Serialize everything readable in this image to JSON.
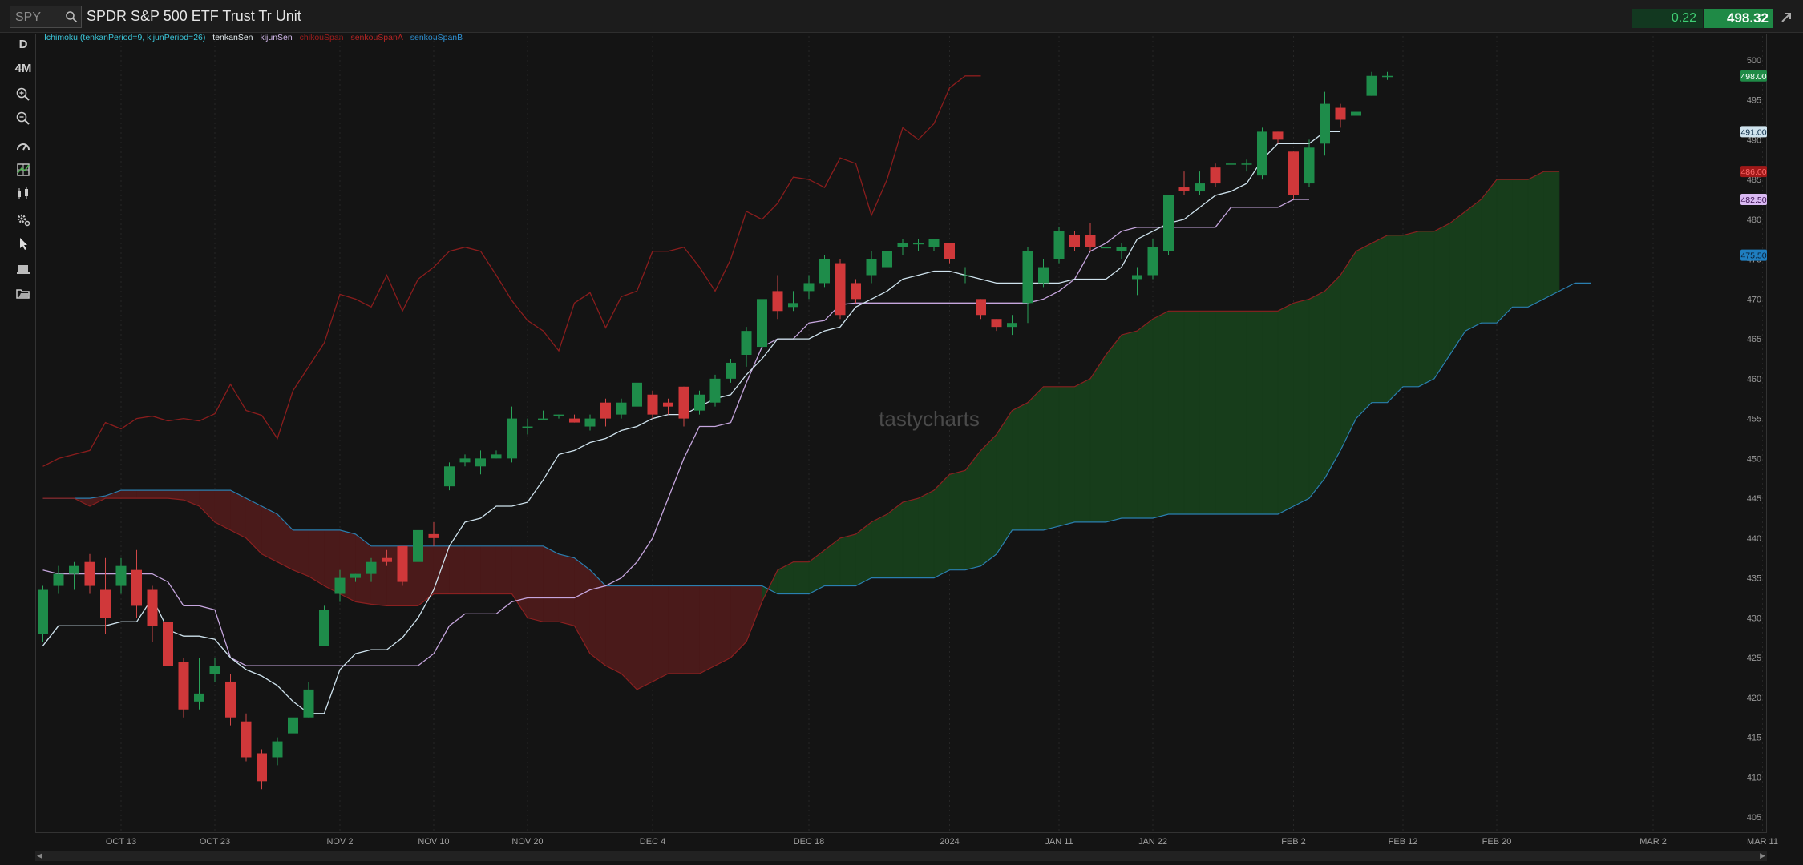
{
  "header": {
    "search_value": "SPY",
    "title": "SPDR S&P 500 ETF Trust Tr Unit",
    "net_change": "0.22",
    "last_price": "498.32"
  },
  "toolbar": {
    "period": "D",
    "range": "4M",
    "icons": [
      "zoom-in-icon",
      "zoom-out-icon",
      "drawings-icon",
      "studies-icon",
      "style-icon",
      "settings-icon",
      "cursor-icon",
      "template-icon",
      "open-folder-icon"
    ]
  },
  "legend": {
    "study": "Ichimoku (tenkanPeriod=9, kijunPeriod=26)",
    "tenkan": "tenkanSen",
    "kijun": "kijunSen",
    "chikou": "chikouSpan",
    "spanA": "senkouSpanA",
    "spanB": "senkouSpanB"
  },
  "watermark": "tastycharts",
  "colors": {
    "up": "#1e8c4a",
    "down": "#d0383a",
    "tenkan": "#cfe3ee",
    "kijun": "#c6a6de",
    "chikou": "#8a1d1d",
    "spanA": "#8a2020",
    "spanB": "#2a7fb0",
    "cloud_bull": "#173d1b",
    "cloud_bear": "#4a1a1a"
  },
  "chart_data": {
    "type": "candlestick",
    "ylim": [
      403,
      503
    ],
    "y_ticks": [
      405,
      410,
      415,
      420,
      425,
      430,
      435,
      440,
      445,
      450,
      455,
      460,
      465,
      470,
      475,
      480,
      485,
      490,
      495,
      500
    ],
    "x_tick_labels": [
      {
        "i": 5,
        "label": "OCT 13"
      },
      {
        "i": 11,
        "label": "OCT 23"
      },
      {
        "i": 19,
        "label": "NOV 2"
      },
      {
        "i": 25,
        "label": "NOV 10"
      },
      {
        "i": 31,
        "label": "NOV 20"
      },
      {
        "i": 39,
        "label": "DEC 4"
      },
      {
        "i": 49,
        "label": "DEC 18"
      },
      {
        "i": 58,
        "label": "2024"
      },
      {
        "i": 65,
        "label": "JAN 11"
      },
      {
        "i": 71,
        "label": "JAN 22"
      },
      {
        "i": 80,
        "label": "FEB 2"
      },
      {
        "i": 87,
        "label": "FEB 12"
      },
      {
        "i": 93,
        "label": "FEB 20"
      },
      {
        "i": 103,
        "label": "MAR 2"
      },
      {
        "i": 110,
        "label": "MAR 11"
      }
    ],
    "candles": [
      [
        428,
        433.5,
        427,
        434
      ],
      [
        434,
        435.5,
        433,
        436.5
      ],
      [
        435.5,
        436.5,
        433.5,
        437
      ],
      [
        437,
        434,
        433,
        438
      ],
      [
        433.5,
        430,
        428,
        437.5
      ],
      [
        434,
        436.5,
        433,
        437.5
      ],
      [
        436,
        431.5,
        430,
        438.5
      ],
      [
        433.5,
        429,
        427,
        434
      ],
      [
        429.5,
        424,
        423.5,
        431
      ],
      [
        424.5,
        418.5,
        417.5,
        425
      ],
      [
        419.5,
        420.5,
        418.5,
        425
      ],
      [
        423,
        424,
        422,
        425
      ],
      [
        422,
        417.5,
        416.5,
        423
      ],
      [
        417,
        412.5,
        412,
        418
      ],
      [
        413,
        409.5,
        408.5,
        413.5
      ],
      [
        412.5,
        414.5,
        411.5,
        415
      ],
      [
        415.5,
        417.5,
        414.5,
        418
      ],
      [
        417.5,
        421,
        417.5,
        422
      ],
      [
        426.5,
        431,
        426.5,
        431.5
      ],
      [
        433,
        435,
        432,
        436
      ],
      [
        435,
        435.5,
        434.5,
        435.5
      ],
      [
        435.5,
        437,
        434.5,
        437.5
      ],
      [
        437.5,
        437,
        436.5,
        438.5
      ],
      [
        439,
        434.5,
        434,
        439
      ],
      [
        437,
        441,
        436,
        441.5
      ],
      [
        440.5,
        440,
        439,
        442
      ],
      [
        446.5,
        449,
        446,
        449.5
      ],
      [
        449.5,
        450,
        449,
        450.5
      ],
      [
        449,
        450,
        448,
        451
      ],
      [
        450,
        450.5,
        450,
        451
      ],
      [
        450,
        455,
        449.5,
        456.5
      ],
      [
        454,
        454,
        453,
        455
      ],
      [
        455,
        455,
        455,
        456
      ],
      [
        455.5,
        455.5,
        455,
        455.5
      ],
      [
        455,
        454.5,
        454.5,
        455.5
      ],
      [
        454,
        455,
        453.5,
        455.5
      ],
      [
        457,
        455,
        454,
        457.5
      ],
      [
        455.5,
        457,
        455,
        457.5
      ],
      [
        456.5,
        459.5,
        455.5,
        460
      ],
      [
        458,
        455.5,
        455,
        458.5
      ],
      [
        457,
        456.5,
        455.5,
        457.5
      ],
      [
        459,
        455,
        454,
        459
      ],
      [
        456,
        458,
        455.5,
        458.5
      ],
      [
        457,
        460,
        456.5,
        460.5
      ],
      [
        460,
        462,
        459.5,
        462.5
      ],
      [
        463,
        466,
        461.5,
        466.5
      ],
      [
        464,
        470,
        463.5,
        470.5
      ],
      [
        471,
        468.5,
        467.5,
        473
      ],
      [
        469,
        469.5,
        468.5,
        471
      ],
      [
        471,
        472,
        470,
        473
      ],
      [
        472,
        475,
        471.5,
        475.5
      ],
      [
        474.5,
        468,
        467.5,
        475
      ],
      [
        472,
        470,
        469.5,
        472.5
      ],
      [
        473,
        475,
        472,
        476
      ],
      [
        474,
        476,
        473.5,
        476.5
      ],
      [
        476.5,
        477,
        475.5,
        477.5
      ],
      [
        477,
        477,
        476,
        477.5
      ],
      [
        476.5,
        477.5,
        476,
        477.5
      ],
      [
        477,
        475,
        474.5,
        477
      ],
      [
        473,
        473,
        472,
        474
      ],
      [
        470,
        468,
        467.5,
        470
      ],
      [
        467.5,
        466.5,
        466,
        467.5
      ],
      [
        466.5,
        467,
        465.5,
        468
      ],
      [
        469.5,
        476,
        467,
        476.5
      ],
      [
        472,
        474,
        471.5,
        475
      ],
      [
        475,
        478.5,
        474.5,
        479
      ],
      [
        478,
        476.5,
        476,
        478.5
      ],
      [
        478,
        476.5,
        476,
        479.5
      ],
      [
        476.5,
        476.5,
        475,
        476.5
      ],
      [
        476,
        476.5,
        475,
        477
      ],
      [
        472.5,
        473,
        470.5,
        474
      ],
      [
        473,
        476.5,
        472.5,
        477.5
      ],
      [
        476,
        483,
        475.5,
        483
      ],
      [
        484,
        483.5,
        483,
        486
      ],
      [
        483.5,
        484.5,
        483,
        486
      ],
      [
        486.5,
        484.5,
        484,
        487
      ],
      [
        487,
        487,
        486.5,
        487.5
      ],
      [
        487,
        487,
        486,
        487.5
      ],
      [
        485.5,
        491,
        485,
        491.5
      ],
      [
        491,
        490,
        489.5,
        491
      ],
      [
        488.5,
        483,
        482.5,
        488.5
      ],
      [
        484.5,
        489,
        484,
        490
      ],
      [
        489.5,
        494.5,
        488,
        496
      ],
      [
        494,
        492.5,
        491.5,
        494.5
      ],
      [
        493,
        493.5,
        492,
        494
      ],
      [
        495.5,
        498,
        495.5,
        498.5
      ],
      [
        498,
        498,
        497.5,
        498.5
      ]
    ],
    "tenkan": [
      426.5,
      429,
      429,
      429,
      429,
      429.5,
      429.5,
      432.5,
      428.5,
      427.7,
      427.7,
      427.3,
      425,
      423.5,
      422.7,
      421.5,
      419.5,
      418,
      418,
      423.5,
      425.5,
      426,
      426,
      427.5,
      430,
      433.5,
      439,
      442,
      442.5,
      444,
      444,
      444.5,
      447.3,
      450.5,
      451,
      452,
      452.5,
      453.5,
      454,
      455,
      455.5,
      455.5,
      456.5,
      457.5,
      458,
      460.5,
      462.5,
      465,
      465,
      465,
      466,
      466.5,
      469,
      470,
      471,
      472.5,
      473,
      473.5,
      473.5,
      473,
      472.5,
      472,
      472,
      472,
      472,
      472,
      472.5,
      472.5,
      472.5,
      474,
      477.5,
      478.5,
      479.5,
      480,
      481.5,
      483,
      483.5,
      484.5,
      487.5,
      489.5,
      489.5,
      489.5,
      491,
      491
    ],
    "kijun": [
      436,
      435.5,
      435.5,
      435.5,
      435.5,
      435.5,
      435.5,
      435.5,
      434.5,
      431.5,
      431.5,
      431,
      425,
      424,
      424,
      424,
      424,
      424,
      424,
      424,
      424,
      424,
      424,
      424,
      424,
      425.5,
      429,
      430.5,
      430.5,
      430.5,
      432,
      432.5,
      432.5,
      432.5,
      432.5,
      433.5,
      434,
      435,
      437,
      440,
      445,
      450,
      454,
      454,
      454.5,
      459.5,
      464,
      465,
      465,
      467,
      467.3,
      469.3,
      469.5,
      469.5,
      469.5,
      469.5,
      469.5,
      469.5,
      469.5,
      469.5,
      469.5,
      469.5,
      469.5,
      469.5,
      470,
      471,
      472.5,
      476,
      477,
      478.5,
      479,
      479,
      479,
      479,
      479,
      479,
      481.5,
      481.5,
      481.5,
      481.5,
      482.5,
      482.5
    ],
    "chikou": [
      449,
      450,
      450.5,
      451,
      454.5,
      453.7,
      455,
      455.3,
      454.7,
      455,
      454.7,
      455.6,
      459.3,
      456,
      455.4,
      452.5,
      458.5,
      461.5,
      464.5,
      470.6,
      470,
      469,
      473,
      468.5,
      472.5,
      474,
      476,
      476.5,
      476,
      473,
      469.8,
      467.3,
      466,
      463.5,
      469.5,
      470.8,
      466.4,
      470.3,
      471,
      476,
      476,
      476.5,
      474,
      471,
      475,
      481,
      480,
      482,
      485.3,
      485,
      484,
      487.7,
      487,
      480.5,
      485,
      491.5,
      490,
      492,
      496.5,
      498,
      498
    ],
    "spanA": [
      445,
      445,
      445,
      444,
      445,
      445,
      445,
      445,
      445,
      444.8,
      444,
      442,
      441,
      440,
      438,
      437,
      436,
      435.2,
      434,
      433,
      432,
      431.7,
      431.5,
      431.5,
      431.5,
      433,
      433,
      433,
      433,
      433,
      433,
      430,
      429.5,
      429.5,
      429,
      425.5,
      424,
      423,
      421,
      422,
      423,
      423,
      423,
      424,
      425,
      427,
      432,
      436,
      437,
      437,
      438.5,
      440,
      440.5,
      442,
      443,
      444.5,
      445,
      446,
      448,
      448.5,
      451,
      453,
      456,
      457,
      459,
      459,
      459,
      460,
      463,
      465.5,
      466,
      467.5,
      468.5,
      468.5,
      468.5,
      468.5,
      468.5,
      468.5,
      468.5,
      468.5,
      469.5,
      470,
      471,
      473,
      476,
      477,
      478,
      478,
      478.5,
      478.5,
      479.5,
      481,
      482.5,
      485,
      485,
      485,
      486,
      486
    ],
    "spanB": [
      445,
      445,
      445,
      445,
      445.3,
      446,
      446,
      446,
      446,
      446,
      446,
      446,
      446,
      445,
      444,
      443,
      441,
      441,
      441,
      441,
      440.5,
      439,
      439,
      439,
      439,
      439,
      439,
      439,
      439,
      439,
      439,
      439,
      439,
      438,
      437.5,
      436,
      434,
      434,
      434,
      434,
      434,
      434,
      434,
      434,
      434,
      434,
      434,
      433,
      433,
      433,
      434,
      434,
      434,
      435,
      435,
      435,
      435,
      435,
      436,
      436,
      436.5,
      438,
      441,
      441,
      441,
      441.5,
      442,
      442,
      442,
      442.5,
      442.5,
      442.5,
      443,
      443,
      443,
      443,
      443,
      443,
      443,
      443,
      444,
      445,
      447.5,
      451,
      455,
      457,
      457,
      459,
      459,
      460,
      463,
      466,
      467,
      467,
      469,
      469,
      470,
      471,
      472,
      472
    ]
  }
}
